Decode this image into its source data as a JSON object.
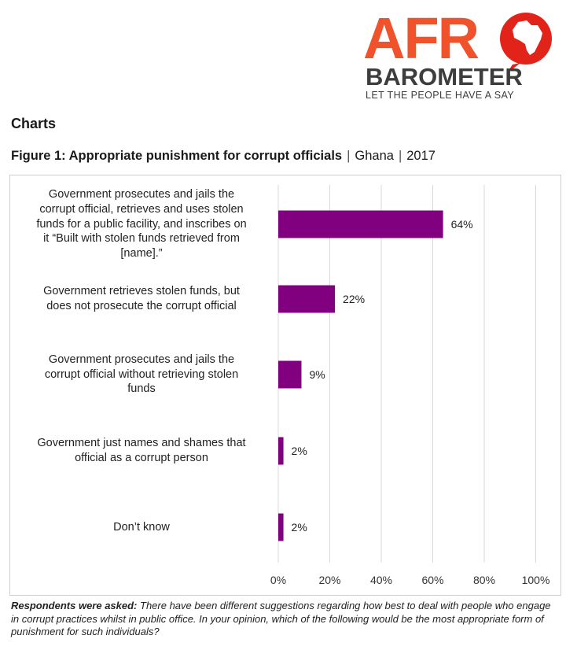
{
  "logo": {
    "wordmark_top": "AFR",
    "wordmark_bottom": "BAROMETER",
    "tagline": "LET THE PEOPLE HAVE A SAY",
    "colors": {
      "orange": "#f0522b",
      "dark": "#3d3d3d",
      "red": "#e2231a"
    }
  },
  "section_heading": "Charts",
  "figure": {
    "title_bold": "Figure 1: Appropriate punishment for corrupt officials",
    "separator": "|",
    "country": "Ghana",
    "year": "2017"
  },
  "chart_data": {
    "type": "bar",
    "orientation": "horizontal",
    "categories": [
      "Government prosecutes and jails the corrupt official, retrieves and uses stolen funds for a public facility, and inscribes on it “Built with stolen funds retrieved from [name].”",
      "Government retrieves stolen funds, but does not prosecute the corrupt official",
      "Government prosecutes and jails the corrupt official without retrieving stolen funds",
      "Government just names and shames that official as a corrupt person",
      "Don’t know"
    ],
    "category_lines": [
      [
        "Government prosecutes and jails the",
        "corrupt official, retrieves and uses stolen",
        "funds for a public facility, and inscribes on",
        "it “Built with stolen funds retrieved from",
        "[name].”"
      ],
      [
        "Government retrieves stolen funds, but",
        "does not prosecute the corrupt official"
      ],
      [
        "Government prosecutes and jails the",
        "corrupt official without retrieving stolen",
        "funds"
      ],
      [
        "Government just names and shames that",
        "official as a corrupt person"
      ],
      [
        "Don’t know"
      ]
    ],
    "values": [
      64,
      22,
      9,
      2,
      2
    ],
    "value_labels": [
      "64%",
      "22%",
      "9%",
      "2%",
      "2%"
    ],
    "xlim": [
      0,
      100
    ],
    "xticks": [
      0,
      20,
      40,
      60,
      80,
      100
    ],
    "xtick_labels": [
      "0%",
      "20%",
      "40%",
      "60%",
      "80%",
      "100%"
    ],
    "grid": true,
    "bar_color": "#800080",
    "legend": "none"
  },
  "footnote": {
    "lead": "Respondents were asked:",
    "text": " There have been different suggestions regarding how best to deal with people who engage in corrupt practices whilst in public office. In your opinion, which of the following would be the most appropriate form of punishment for such individuals?"
  }
}
